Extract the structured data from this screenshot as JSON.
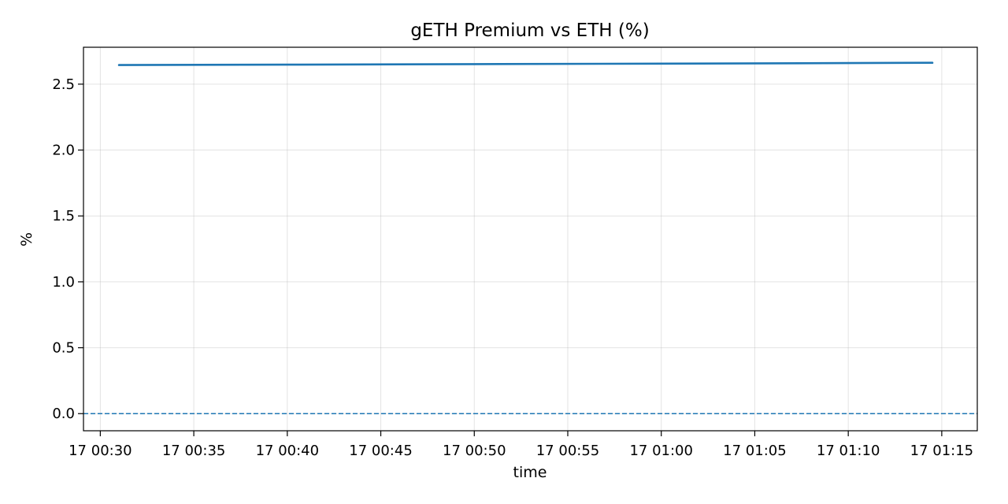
{
  "chart_data": {
    "type": "line",
    "title": "gETH Premium vs ETH (%)",
    "xlabel": "time",
    "ylabel": "%",
    "x_ticks": [
      "17 00:30",
      "17 00:35",
      "17 00:40",
      "17 00:45",
      "17 00:50",
      "17 00:55",
      "17 01:00",
      "17 01:05",
      "17 01:10",
      "17 01:15"
    ],
    "y_ticks": [
      "0.0",
      "0.5",
      "1.0",
      "1.5",
      "2.0",
      "2.5"
    ],
    "ylim": [
      -0.13,
      2.78
    ],
    "xlim": [
      "00:29:06",
      "01:16:54"
    ],
    "grid": true,
    "series": [
      {
        "color": "#1f77b4",
        "points": [
          {
            "x": "00:31:00",
            "y": 2.645
          },
          {
            "x": "00:40:00",
            "y": 2.648
          },
          {
            "x": "00:50:00",
            "y": 2.652
          },
          {
            "x": "01:00:00",
            "y": 2.656
          },
          {
            "x": "01:10:00",
            "y": 2.66
          },
          {
            "x": "01:14:30",
            "y": 2.662
          }
        ]
      }
    ],
    "reference_lines": [
      {
        "y": 0.0,
        "style": "dashed",
        "color": "#1f77b4"
      }
    ]
  }
}
